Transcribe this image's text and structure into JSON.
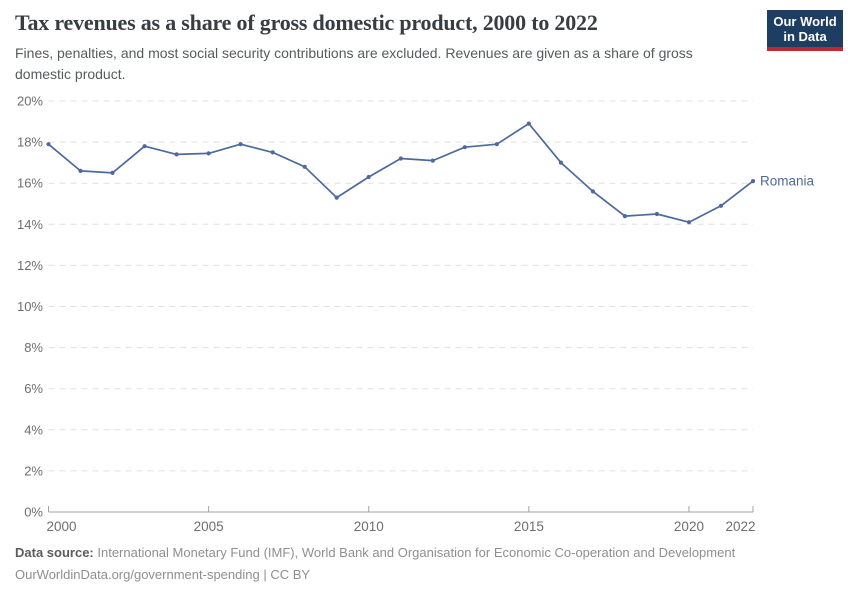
{
  "header": {
    "title": "Tax revenues as a share of gross domestic product, 2000 to 2022",
    "subtitle": "Fines, penalties, and most social security contributions are excluded. Revenues are given as a share of gross domestic product."
  },
  "logo": {
    "line1": "Our World",
    "line2": "in Data"
  },
  "chart_data": {
    "type": "line",
    "title": "Tax revenues as a share of gross domestic product, 2000 to 2022",
    "x": [
      2000,
      2001,
      2002,
      2003,
      2004,
      2005,
      2006,
      2007,
      2008,
      2009,
      2010,
      2011,
      2012,
      2013,
      2014,
      2015,
      2016,
      2017,
      2018,
      2019,
      2020,
      2021,
      2022
    ],
    "series": [
      {
        "name": "Romania",
        "color": "#4c6a9c",
        "values": [
          17.9,
          16.6,
          16.5,
          17.8,
          17.4,
          17.45,
          17.9,
          17.5,
          16.8,
          15.3,
          16.3,
          17.2,
          17.1,
          17.75,
          17.9,
          18.9,
          17.0,
          15.6,
          14.4,
          14.5,
          14.1,
          14.9,
          16.1
        ]
      }
    ],
    "xlim": [
      2000,
      2022
    ],
    "ylim": [
      0,
      20
    ],
    "yticks": [
      0,
      2,
      4,
      6,
      8,
      10,
      12,
      14,
      16,
      18,
      20
    ],
    "ytick_suffix": "%",
    "xticks": [
      2000,
      2005,
      2010,
      2015,
      2020,
      2022
    ],
    "grid": true,
    "legend_position": "end-of-line",
    "xlabel": "",
    "ylabel": ""
  },
  "footer": {
    "datasource_label": "Data source:",
    "datasource_text": "International Monetary Fund (IMF), World Bank and Organisation for Economic Co-operation and Development",
    "attribution": "OurWorldinData.org/government-spending | CC BY"
  },
  "colors": {
    "line": "#4c6a9c",
    "grid": "#e0e0e0",
    "axis": "#a3a3a3",
    "tick_label": "#6e6e6e",
    "logo_bg": "#1d3d63",
    "logo_accent": "#c1272d"
  }
}
